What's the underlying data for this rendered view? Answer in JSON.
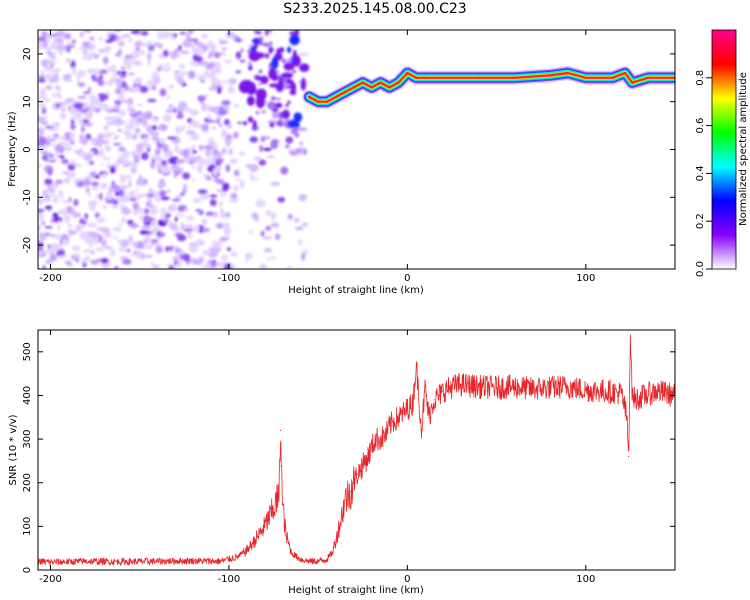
{
  "page_title": "S233.2025.145.08.00.C23",
  "colors": {
    "spectrum_ridge": "#ff2020",
    "snr_line": "#e8262a",
    "axis": "#000000"
  },
  "colorbar": {
    "label": "Normalized spectral amplitude",
    "ticks": [
      "0.0",
      "0.2",
      "0.4",
      "0.6",
      "0.8"
    ],
    "range": [
      0.0,
      1.0
    ],
    "colormap": [
      "#ffffff",
      "#8800ff",
      "#0000ff",
      "#00ffff",
      "#00ff00",
      "#ffff00",
      "#ff0000",
      "#ff0088"
    ]
  },
  "chart_data": [
    {
      "type": "heatmap",
      "title": "",
      "xlabel": "Height of straight line (km)",
      "ylabel": "Frequency (Hz)",
      "xlim": [
        -207,
        150
      ],
      "ylim": [
        -25,
        25
      ],
      "x_ticks": [
        -200,
        -100,
        0,
        100
      ],
      "y_ticks": [
        -20,
        -10,
        0,
        10,
        20
      ],
      "x_tick_labels": [
        "-200",
        "-100",
        "0",
        "100"
      ],
      "y_tick_labels": [
        "-20",
        "-10",
        "0",
        "10",
        "20"
      ],
      "ridge": {
        "x": [
          -55,
          -50,
          -45,
          -40,
          -35,
          -30,
          -25,
          -20,
          -15,
          -10,
          -5,
          0,
          5,
          10,
          20,
          40,
          60,
          80,
          90,
          100,
          115,
          122,
          126,
          135,
          150
        ],
        "y": [
          11,
          10,
          10,
          11,
          12,
          13,
          14,
          13,
          14,
          13,
          14,
          16,
          15,
          15,
          15,
          15,
          15,
          15.5,
          16,
          15,
          15,
          16,
          14,
          15,
          15
        ]
      }
    },
    {
      "type": "line",
      "title": "",
      "xlabel": "Height of straight line (km)",
      "ylabel": "SNR (10 * v/v)",
      "xlim": [
        -207,
        150
      ],
      "ylim": [
        0,
        550
      ],
      "x_ticks": [
        -200,
        -100,
        0,
        100
      ],
      "y_ticks": [
        0,
        100,
        200,
        300,
        400,
        500
      ],
      "x_tick_labels": [
        "-200",
        "-100",
        "0",
        "100"
      ],
      "y_tick_labels": [
        "0",
        "100",
        "200",
        "300",
        "400",
        "500"
      ],
      "series": [
        {
          "x": [
            -207,
            -200,
            -180,
            -160,
            -140,
            -120,
            -105,
            -100,
            -95,
            -90,
            -85,
            -80,
            -75,
            -72,
            -71,
            -70,
            -68,
            -65,
            -62,
            -60,
            -55,
            -50,
            -45,
            -42,
            -40,
            -37,
            -35,
            -32,
            -30,
            -28,
            -25,
            -22,
            -20,
            -18,
            -15,
            -12,
            -10,
            -8,
            -5,
            -2,
            0,
            3,
            5,
            8,
            10,
            12,
            15,
            18,
            20,
            25,
            30,
            40,
            50,
            60,
            70,
            80,
            90,
            100,
            110,
            120,
            123,
            124,
            125,
            126,
            128,
            130,
            140,
            150
          ],
          "values": [
            20,
            18,
            20,
            19,
            20,
            21,
            20,
            25,
            30,
            45,
            70,
            100,
            140,
            170,
            320,
            150,
            80,
            40,
            30,
            25,
            20,
            20,
            25,
            40,
            70,
            120,
            160,
            180,
            200,
            220,
            240,
            260,
            280,
            300,
            300,
            310,
            330,
            340,
            350,
            360,
            370,
            380,
            470,
            320,
            420,
            350,
            390,
            400,
            410,
            420,
            425,
            420,
            418,
            420,
            415,
            418,
            420,
            412,
            410,
            405,
            350,
            260,
            550,
            400,
            390,
            395,
            410,
            400
          ]
        }
      ]
    }
  ]
}
